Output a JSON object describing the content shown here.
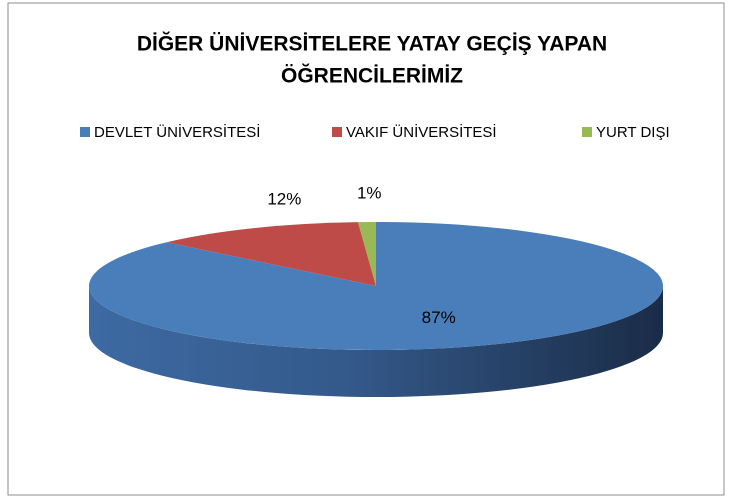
{
  "chart_data": {
    "type": "pie3d",
    "title": [
      "DİĞER ÜNİVERSİTELERE YATAY GEÇİŞ YAPAN",
      "ÖĞRENCİLERİMİZ"
    ],
    "categories": [
      "DEVLET ÜNİVERSİTESİ",
      "VAKIF ÜNİVERSİTESİ",
      "YURT DIŞI"
    ],
    "values": [
      87,
      12,
      1
    ],
    "value_labels": [
      "87%",
      "12%",
      "1%"
    ],
    "colors": [
      "#4a7ebb",
      "#be4b48",
      "#98b954"
    ],
    "legend": "top"
  }
}
